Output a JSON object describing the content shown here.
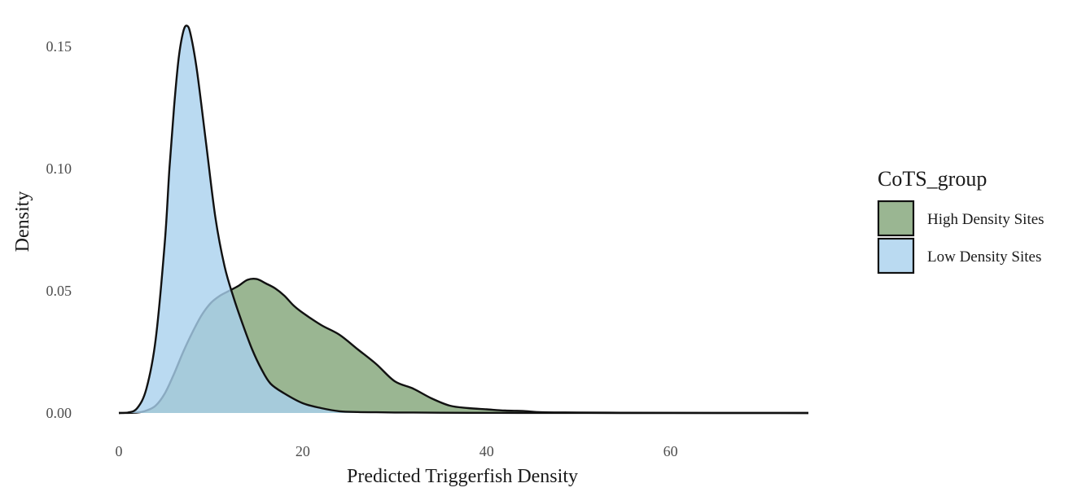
{
  "chart_data": {
    "type": "area",
    "subtype": "density",
    "xlabel": "Predicted Triggerfish Density",
    "ylabel": "Density",
    "xlim": [
      0,
      75
    ],
    "ylim": [
      0,
      0.16
    ],
    "x_ticks": [
      0,
      20,
      40,
      60
    ],
    "x_tick_labels": [
      "0",
      "20",
      "40",
      "60"
    ],
    "y_ticks": [
      0,
      0.05,
      0.1,
      0.15
    ],
    "y_tick_labels": [
      "0.00",
      "0.05",
      "0.10",
      "0.15"
    ],
    "grid": false,
    "legend": {
      "title": "CoTS_group",
      "position": "right"
    },
    "series": [
      {
        "name": "High Density Sites",
        "color": "#8fae86",
        "opacity": 0.9,
        "points": [
          [
            0,
            0
          ],
          [
            2,
            0.0002
          ],
          [
            3,
            0.001
          ],
          [
            4,
            0.003
          ],
          [
            5,
            0.008
          ],
          [
            6,
            0.016
          ],
          [
            7,
            0.025
          ],
          [
            8,
            0.033
          ],
          [
            9,
            0.04
          ],
          [
            10,
            0.045
          ],
          [
            11,
            0.048
          ],
          [
            12,
            0.05
          ],
          [
            13,
            0.052
          ],
          [
            14,
            0.0545
          ],
          [
            15,
            0.0548
          ],
          [
            16,
            0.053
          ],
          [
            17,
            0.051
          ],
          [
            18,
            0.048
          ],
          [
            19,
            0.044
          ],
          [
            20,
            0.041
          ],
          [
            22,
            0.036
          ],
          [
            24,
            0.032
          ],
          [
            26,
            0.026
          ],
          [
            28,
            0.02
          ],
          [
            30,
            0.013
          ],
          [
            32,
            0.01
          ],
          [
            34,
            0.006
          ],
          [
            36,
            0.003
          ],
          [
            38,
            0.002
          ],
          [
            40,
            0.0015
          ],
          [
            42,
            0.001
          ],
          [
            44,
            0.0008
          ],
          [
            46,
            0.0003
          ],
          [
            50,
            0.0002
          ],
          [
            55,
            0.0001
          ],
          [
            60,
            5e-05
          ],
          [
            65,
            2e-05
          ],
          [
            70,
            1e-05
          ],
          [
            75,
            0
          ]
        ]
      },
      {
        "name": "Low Density Sites",
        "color": "#a9d1ed",
        "opacity": 0.8,
        "points": [
          [
            0,
            0
          ],
          [
            1,
            0.0002
          ],
          [
            2,
            0.002
          ],
          [
            3,
            0.01
          ],
          [
            4,
            0.03
          ],
          [
            5,
            0.07
          ],
          [
            5.5,
            0.1
          ],
          [
            6,
            0.125
          ],
          [
            6.5,
            0.145
          ],
          [
            7,
            0.156
          ],
          [
            7.4,
            0.1585
          ],
          [
            7.8,
            0.155
          ],
          [
            8.5,
            0.14
          ],
          [
            9.5,
            0.11
          ],
          [
            10.5,
            0.08
          ],
          [
            11.5,
            0.06
          ],
          [
            12.5,
            0.047
          ],
          [
            13.5,
            0.036
          ],
          [
            14.5,
            0.026
          ],
          [
            15.5,
            0.018
          ],
          [
            16.5,
            0.012
          ],
          [
            18,
            0.008
          ],
          [
            20,
            0.004
          ],
          [
            22,
            0.002
          ],
          [
            24,
            0.0007
          ],
          [
            26,
            0.0004
          ],
          [
            28,
            0.0003
          ],
          [
            30,
            0.0002
          ],
          [
            32,
            0.0002
          ],
          [
            35,
            0.0001
          ],
          [
            40,
            5e-05
          ],
          [
            45,
            2e-05
          ],
          [
            50,
            1e-05
          ],
          [
            55,
            0
          ],
          [
            75,
            0
          ]
        ]
      }
    ]
  }
}
